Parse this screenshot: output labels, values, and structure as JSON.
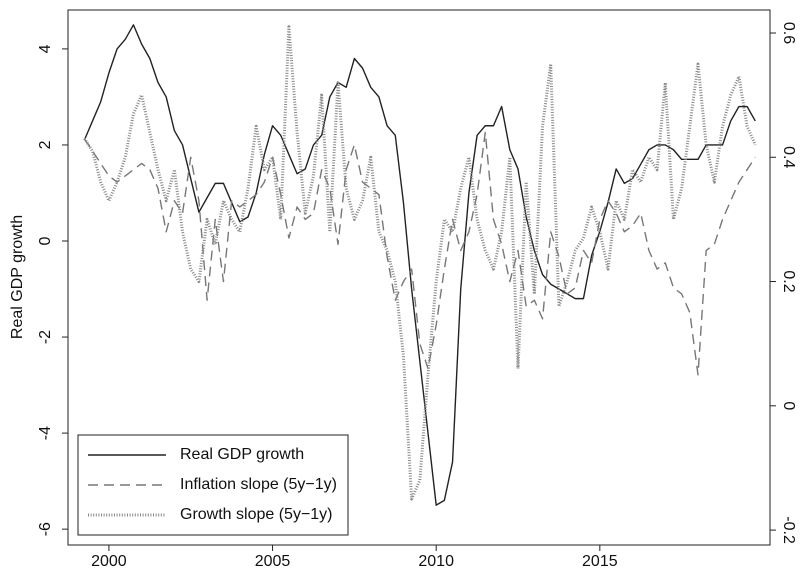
{
  "chart_data": {
    "type": "line",
    "ylabel": "Real GDP growth",
    "x": [
      1999.25,
      1999.5,
      1999.75,
      2000,
      2000.25,
      2000.5,
      2000.75,
      2001,
      2001.25,
      2001.5,
      2001.75,
      2002,
      2002.25,
      2002.5,
      2002.75,
      2003,
      2003.25,
      2003.5,
      2003.75,
      2004,
      2004.25,
      2004.5,
      2004.75,
      2005,
      2005.25,
      2005.5,
      2005.75,
      2006,
      2006.25,
      2006.5,
      2006.75,
      2007,
      2007.25,
      2007.5,
      2007.75,
      2008,
      2008.25,
      2008.5,
      2008.75,
      2009,
      2009.25,
      2009.5,
      2009.75,
      2010,
      2010.25,
      2010.5,
      2010.75,
      2011,
      2011.25,
      2011.5,
      2011.75,
      2012,
      2012.25,
      2012.5,
      2012.75,
      2013,
      2013.25,
      2013.5,
      2013.75,
      2014,
      2014.25,
      2014.5,
      2014.75,
      2015,
      2015.25,
      2015.5,
      2015.75,
      2016,
      2016.25,
      2016.5,
      2016.75,
      2017,
      2017.25,
      2017.5,
      2017.75,
      2018,
      2018.25,
      2018.5,
      2018.75,
      2019,
      2019.25,
      2019.5,
      2019.75
    ],
    "series": [
      {
        "name": "Real GDP growth",
        "color": "#222222",
        "style": "solid",
        "axis": "y",
        "values": [
          2.1,
          2.5,
          2.9,
          3.5,
          4.0,
          4.2,
          4.5,
          4.1,
          3.8,
          3.3,
          3.0,
          2.3,
          2.0,
          1.3,
          0.6,
          0.9,
          1.2,
          1.2,
          0.8,
          0.4,
          0.5,
          1.0,
          1.8,
          2.4,
          2.2,
          1.8,
          1.4,
          1.5,
          2.0,
          2.2,
          3.0,
          3.3,
          3.2,
          3.8,
          3.6,
          3.2,
          3.0,
          2.4,
          2.2,
          0.8,
          -1.0,
          -2.5,
          -4.0,
          -5.5,
          -5.4,
          -4.6,
          -1.0,
          1.0,
          2.2,
          2.4,
          2.4,
          2.8,
          1.9,
          1.5,
          0.5,
          -0.2,
          -0.7,
          -0.9,
          -1.0,
          -1.1,
          -1.2,
          -1.2,
          -0.3,
          0.2,
          0.8,
          1.5,
          1.2,
          1.3,
          1.6,
          1.9,
          2.0,
          2.0,
          1.9,
          1.7,
          1.7,
          1.7,
          2.0,
          2.0,
          2.0,
          2.5,
          2.8,
          2.8,
          2.5
        ]
      },
      {
        "name": "Inflation slope (5y−1y)",
        "color": "#777777",
        "style": "dashed",
        "axis": "y2",
        "values": [
          0.43,
          0.41,
          0.39,
          0.37,
          0.36,
          0.37,
          0.38,
          0.39,
          0.38,
          0.35,
          0.28,
          0.33,
          0.31,
          0.4,
          0.33,
          0.17,
          0.3,
          0.2,
          0.33,
          0.32,
          0.33,
          0.34,
          0.36,
          0.4,
          0.34,
          0.27,
          0.32,
          0.3,
          0.31,
          0.38,
          0.35,
          0.26,
          0.38,
          0.42,
          0.36,
          0.35,
          0.34,
          0.24,
          0.17,
          0.2,
          0.22,
          0.1,
          0.06,
          0.13,
          0.22,
          0.3,
          0.25,
          0.28,
          0.34,
          0.44,
          0.3,
          0.26,
          0.2,
          0.25,
          0.16,
          0.17,
          0.14,
          0.28,
          0.24,
          0.18,
          0.19,
          0.25,
          0.23,
          0.3,
          0.33,
          0.31,
          0.28,
          0.29,
          0.31,
          0.25,
          0.22,
          0.23,
          0.19,
          0.18,
          0.15,
          0.05,
          0.25,
          0.26,
          0.3,
          0.33,
          0.36,
          0.38,
          0.4
        ]
      },
      {
        "name": "Growth slope (5y−1y)",
        "color": "#888888",
        "style": "dotted",
        "axis": "y2",
        "values": [
          0.43,
          0.41,
          0.36,
          0.33,
          0.36,
          0.4,
          0.47,
          0.5,
          0.44,
          0.38,
          0.33,
          0.38,
          0.28,
          0.22,
          0.2,
          0.3,
          0.26,
          0.33,
          0.3,
          0.28,
          0.35,
          0.45,
          0.38,
          0.4,
          0.3,
          0.61,
          0.44,
          0.31,
          0.37,
          0.5,
          0.28,
          0.52,
          0.35,
          0.3,
          0.33,
          0.4,
          0.28,
          0.25,
          0.2,
          0.08,
          -0.15,
          -0.12,
          0.05,
          0.2,
          0.3,
          0.28,
          0.35,
          0.4,
          0.3,
          0.25,
          0.22,
          0.28,
          0.4,
          0.06,
          0.36,
          0.18,
          0.45,
          0.55,
          0.16,
          0.2,
          0.25,
          0.27,
          0.32,
          0.28,
          0.22,
          0.33,
          0.3,
          0.38,
          0.36,
          0.4,
          0.38,
          0.52,
          0.3,
          0.35,
          0.45,
          0.55,
          0.42,
          0.36,
          0.45,
          0.5,
          0.53,
          0.45,
          0.42
        ]
      }
    ],
    "xlim": [
      1998.75,
      2020.2
    ],
    "xticks": [
      2000,
      2005,
      2010,
      2015
    ],
    "ylim": [
      -6.33,
      4.81
    ],
    "yticks": [
      -6,
      -4,
      -2,
      0,
      2,
      4
    ],
    "y2lim": [
      -0.224,
      0.637
    ],
    "y2ticks": [
      -0.2,
      0,
      0.2,
      0.4,
      0.6
    ],
    "legend": "lower left",
    "grid": false
  }
}
